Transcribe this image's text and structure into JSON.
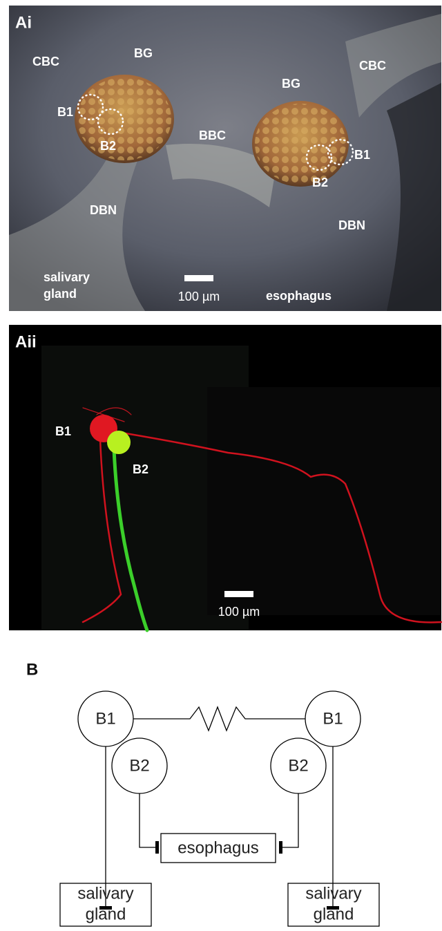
{
  "panel_ai": {
    "label": "Ai",
    "labels": [
      "CBC",
      "BG",
      "B1",
      "B2",
      "BBC",
      "BG",
      "CBC",
      "B1",
      "B2",
      "DBN",
      "DBN",
      "esophagus"
    ],
    "salivary_gland": [
      "salivary",
      "gland"
    ],
    "scale_bar": "100 µm"
  },
  "panel_aii": {
    "label": "Aii",
    "labels": [
      "B1",
      "B2"
    ],
    "scale_bar": "100 µm"
  },
  "panel_b": {
    "label": "B",
    "nodes": [
      {
        "label": "B1"
      },
      {
        "label": "B1"
      },
      {
        "label": "B2"
      },
      {
        "label": "B2"
      }
    ],
    "esophagus": "esophagus",
    "salivary_gland_left": [
      "salivary",
      "gland"
    ],
    "salivary_gland_right": [
      "salivary",
      "gland"
    ]
  }
}
